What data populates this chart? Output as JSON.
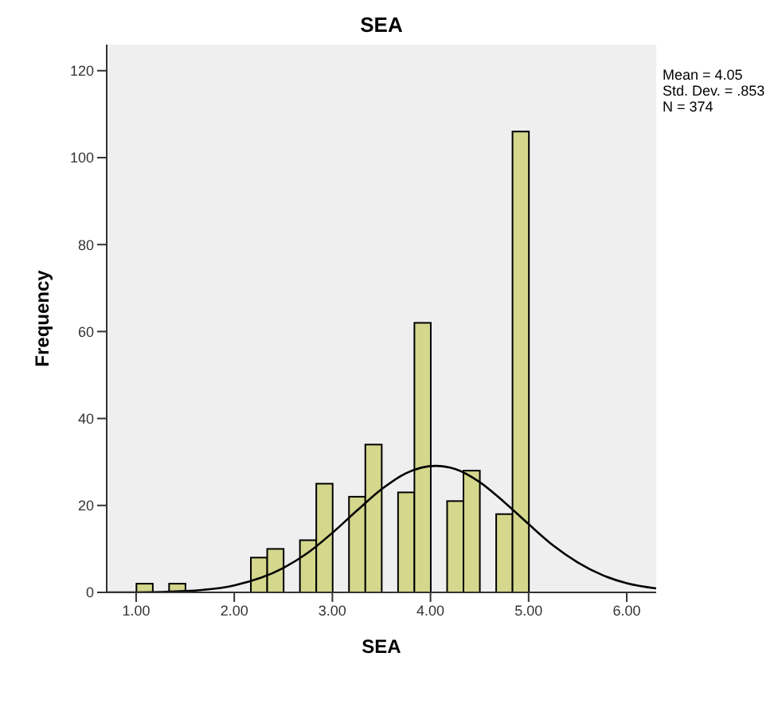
{
  "chart_data": {
    "type": "histogram",
    "title": "SEA",
    "xlabel": "SEA",
    "ylabel": "Frequency",
    "annotations": [
      "Mean = 4.05",
      "Std. Dev. = .853",
      "N = 374"
    ],
    "bins": [
      1,
      1.167,
      1.333,
      1.5,
      1.667,
      1.833,
      2,
      2.167,
      2.333,
      2.5,
      2.667,
      2.833,
      3,
      3.167,
      3.333,
      3.5,
      3.667,
      3.833,
      4,
      4.167,
      4.333,
      4.5,
      4.667,
      4.833,
      5
    ],
    "values": [
      2,
      0,
      2,
      0,
      0,
      0,
      0,
      8,
      10,
      0,
      12,
      25,
      0,
      22,
      34,
      0,
      23,
      62,
      0,
      21,
      28,
      0,
      18,
      106
    ],
    "color": "#d4d78c",
    "series": [
      {
        "type": "line",
        "color": "#000000",
        "x": [
          0.7,
          1,
          1.5,
          2,
          2.5,
          2.75,
          3,
          3.25,
          3.5,
          3.75,
          4.05,
          4.25,
          4.5,
          4.75,
          5,
          5.25,
          5.5,
          5.75,
          6,
          6.3
        ],
        "values": [
          0,
          0,
          0.3,
          1.6,
          5.6,
          9.1,
          13.7,
          18.8,
          23.7,
          27.4,
          29.1,
          28.4,
          25.4,
          20.8,
          15.7,
          10.8,
          6.9,
          4,
          2.1,
          0.9
        ]
      }
    ],
    "xlim": [
      0.7,
      6.3
    ],
    "xticks": [
      {
        "value": 1,
        "label": "1.00"
      },
      {
        "value": 2,
        "label": "2.00"
      },
      {
        "value": 3,
        "label": "3.00"
      },
      {
        "value": 4,
        "label": "4.00"
      },
      {
        "value": 5,
        "label": "5.00"
      },
      {
        "value": 6,
        "label": "6.00"
      }
    ],
    "ylim": [
      0,
      126
    ],
    "yticks": [
      0,
      20,
      40,
      60,
      80,
      100,
      120
    ],
    "grid": false,
    "marker": "none"
  }
}
